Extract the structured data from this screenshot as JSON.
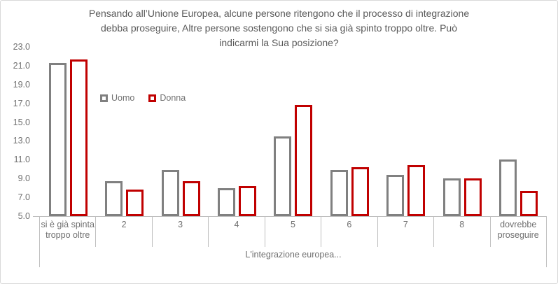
{
  "chart": {
    "title_lines": [
      "Pensando all’Unione Europea, alcune persone ritengono che il processo di integrazione",
      "debba proseguire, Altre persone sostengono che si sia già spinto troppo oltre. Può",
      "indicarmi la Sua posizione?"
    ]
  },
  "chart_data": {
    "type": "bar",
    "title": "Pensando all’Unione Europea, alcune persone ritengono che il processo di integrazione debba proseguire, Altre persone sostengono che si sia già spinto troppo oltre. Può indicarmi la Sua posizione?",
    "categories": [
      "si è già spinta troppo oltre",
      "2",
      "3",
      "4",
      "5",
      "6",
      "7",
      "8",
      "dovrebbe proseguire"
    ],
    "series": [
      {
        "name": "Uomo",
        "color": "#808080",
        "values": [
          21.3,
          8.7,
          9.9,
          8.0,
          13.5,
          9.9,
          9.4,
          9.0,
          11.0
        ]
      },
      {
        "name": "Donna",
        "color": "#C00000",
        "values": [
          21.7,
          7.8,
          8.7,
          8.2,
          16.8,
          10.2,
          10.4,
          9.0,
          7.7
        ]
      }
    ],
    "xlabel": "L'integrazione europea...",
    "ylabel": "",
    "ylim": [
      5.0,
      23.0
    ],
    "yticks": [
      "23.0",
      "21.0",
      "19.0",
      "17.0",
      "15.0",
      "13.0",
      "11.0",
      "9.0",
      "7.0",
      "5.0"
    ],
    "grid": false,
    "legend_position": "inside-upper-left",
    "bar_style": "hollow-outline",
    "colors": {
      "axis_line": "#BFBFBF",
      "frame_border": "#D9D9D9",
      "title_text": "#595959",
      "axis_text": "#707070"
    }
  }
}
